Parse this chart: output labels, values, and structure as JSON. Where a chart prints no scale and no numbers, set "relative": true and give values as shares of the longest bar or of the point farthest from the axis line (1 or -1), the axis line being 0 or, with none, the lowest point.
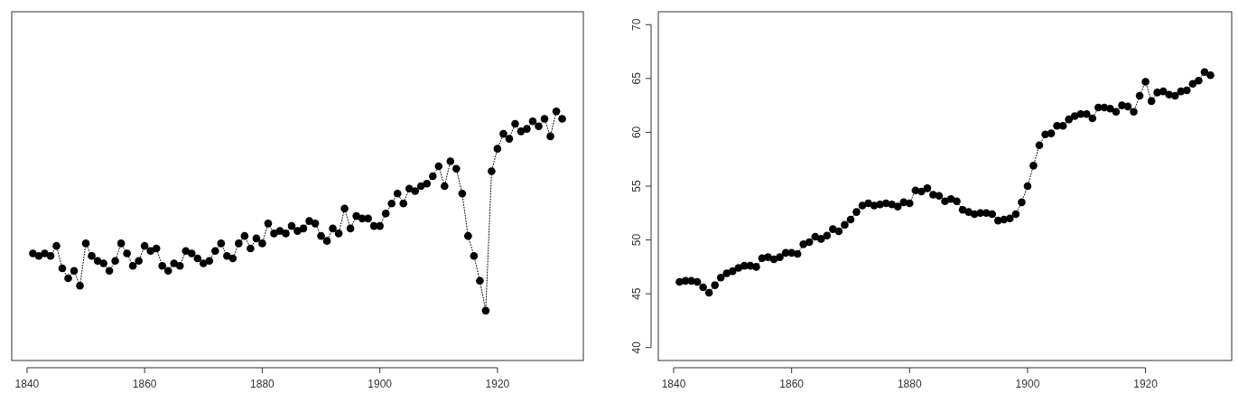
{
  "chart_data": [
    {
      "type": "line",
      "relative": true,
      "marker": "circle",
      "line_style": "dotted",
      "xlim": [
        1837.4,
        1934.6
      ],
      "xticks": [
        1840,
        1860,
        1880,
        1900,
        1920
      ],
      "x": [
        1841,
        1842,
        1843,
        1844,
        1845,
        1846,
        1847,
        1848,
        1849,
        1850,
        1851,
        1852,
        1853,
        1854,
        1855,
        1856,
        1857,
        1858,
        1859,
        1860,
        1861,
        1862,
        1863,
        1864,
        1865,
        1866,
        1867,
        1868,
        1869,
        1870,
        1871,
        1872,
        1873,
        1874,
        1875,
        1876,
        1877,
        1878,
        1879,
        1880,
        1881,
        1882,
        1883,
        1884,
        1885,
        1886,
        1887,
        1888,
        1889,
        1890,
        1891,
        1892,
        1893,
        1894,
        1895,
        1896,
        1897,
        1898,
        1899,
        1900,
        1901,
        1902,
        1903,
        1904,
        1905,
        1906,
        1907,
        1908,
        1909,
        1910,
        1911,
        1912,
        1913,
        1914,
        1915,
        1916,
        1917,
        1918,
        1919,
        1920,
        1921,
        1922,
        1923,
        1924,
        1925,
        1926,
        1927,
        1928,
        1929,
        1930,
        1931
      ],
      "series": [
        {
          "color": "#000000",
          "values": [
            0.43,
            0.42,
            0.43,
            0.42,
            0.46,
            0.37,
            0.33,
            0.36,
            0.3,
            0.47,
            0.42,
            0.4,
            0.39,
            0.36,
            0.4,
            0.47,
            0.43,
            0.38,
            0.4,
            0.46,
            0.44,
            0.45,
            0.38,
            0.36,
            0.39,
            0.38,
            0.44,
            0.43,
            0.41,
            0.39,
            0.4,
            0.44,
            0.47,
            0.42,
            0.41,
            0.47,
            0.5,
            0.45,
            0.49,
            0.47,
            0.55,
            0.51,
            0.52,
            0.51,
            0.54,
            0.52,
            0.53,
            0.56,
            0.55,
            0.5,
            0.48,
            0.53,
            0.51,
            0.61,
            0.53,
            0.58,
            0.57,
            0.57,
            0.54,
            0.54,
            0.59,
            0.63,
            0.67,
            0.63,
            0.69,
            0.68,
            0.7,
            0.71,
            0.74,
            0.78,
            0.7,
            0.8,
            0.77,
            0.67,
            0.5,
            0.42,
            0.32,
            0.2,
            0.76,
            0.85,
            0.91,
            0.89,
            0.95,
            0.92,
            0.93,
            0.96,
            0.94,
            0.97,
            0.9,
            1,
            0.97
          ]
        }
      ]
    },
    {
      "type": "line",
      "marker": "circle",
      "line_style": "dotted",
      "xlim": [
        1837.4,
        1934.6
      ],
      "xticks": [
        1840,
        1860,
        1880,
        1900,
        1920
      ],
      "ylim": [
        38.8,
        71.2
      ],
      "yticks": [
        40,
        45,
        50,
        55,
        60,
        65,
        70
      ],
      "x": [
        1841,
        1842,
        1843,
        1844,
        1845,
        1846,
        1847,
        1848,
        1849,
        1850,
        1851,
        1852,
        1853,
        1854,
        1855,
        1856,
        1857,
        1858,
        1859,
        1860,
        1861,
        1862,
        1863,
        1864,
        1865,
        1866,
        1867,
        1868,
        1869,
        1870,
        1871,
        1872,
        1873,
        1874,
        1875,
        1876,
        1877,
        1878,
        1879,
        1880,
        1881,
        1882,
        1883,
        1884,
        1885,
        1886,
        1887,
        1888,
        1889,
        1890,
        1891,
        1892,
        1893,
        1894,
        1895,
        1896,
        1897,
        1898,
        1899,
        1900,
        1901,
        1902,
        1903,
        1904,
        1905,
        1906,
        1907,
        1908,
        1909,
        1910,
        1911,
        1912,
        1913,
        1914,
        1915,
        1916,
        1917,
        1918,
        1919,
        1920,
        1921,
        1922,
        1923,
        1924,
        1925,
        1926,
        1927,
        1928,
        1929,
        1930,
        1931
      ],
      "series": [
        {
          "color": "#000000",
          "values": [
            46.1,
            46.2,
            46.2,
            46.1,
            45.6,
            45.1,
            45.8,
            46.5,
            46.9,
            47.1,
            47.4,
            47.6,
            47.6,
            47.5,
            48.3,
            48.4,
            48.2,
            48.4,
            48.8,
            48.8,
            48.7,
            49.6,
            49.8,
            50.3,
            50.1,
            50.4,
            51.0,
            50.8,
            51.4,
            51.9,
            52.6,
            53.2,
            53.4,
            53.2,
            53.3,
            53.4,
            53.3,
            53.1,
            53.5,
            53.4,
            54.6,
            54.5,
            54.8,
            54.2,
            54.1,
            53.6,
            53.8,
            53.6,
            52.8,
            52.6,
            52.4,
            52.5,
            52.5,
            52.4,
            51.8,
            51.9,
            52.0,
            52.4,
            53.5,
            55.0,
            56.9,
            58.8,
            59.8,
            59.9,
            60.6,
            60.6,
            61.2,
            61.5,
            61.7,
            61.7,
            61.3,
            62.3,
            62.3,
            62.2,
            61.9,
            62.5,
            62.4,
            61.9,
            63.4,
            64.7,
            62.9,
            63.7,
            63.8,
            63.5,
            63.4,
            63.8,
            63.9,
            64.5,
            64.8,
            65.6,
            65.3
          ]
        }
      ]
    }
  ]
}
